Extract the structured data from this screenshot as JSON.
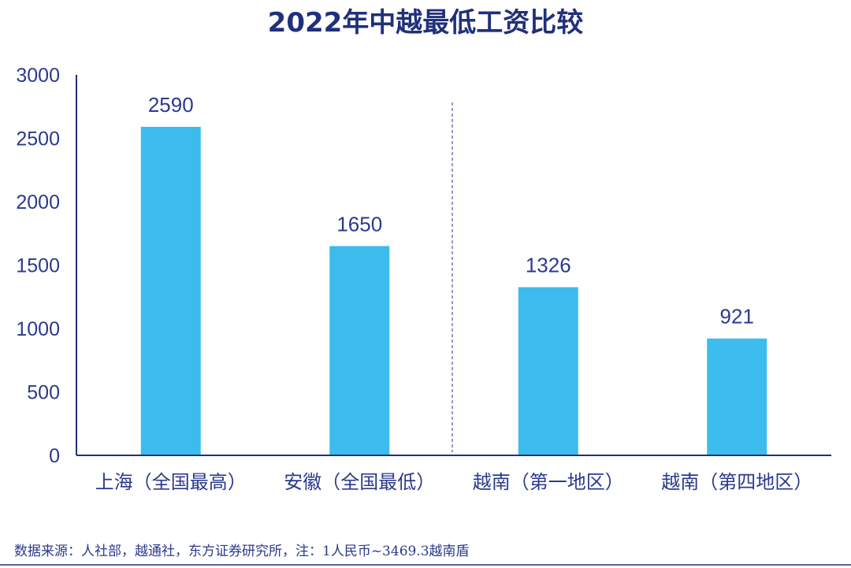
{
  "chart_data": {
    "type": "bar",
    "title": "2022年中越最低工资比较",
    "categories": [
      "上海（全国最高）",
      "安徽（全国最低）",
      "越南（第一地区）",
      "越南（第四地区）"
    ],
    "values": [
      2590,
      1650,
      1326,
      921
    ],
    "data_labels": [
      "2590",
      "1650",
      "1326",
      "921"
    ],
    "ylim": [
      0,
      3000
    ],
    "yticks": [
      "0",
      "500",
      "1000",
      "1500",
      "2000",
      "2500",
      "3000"
    ],
    "xlabel": "",
    "ylabel": "",
    "grid": false,
    "legend": "none",
    "divider_after_category": 2
  },
  "footer": {
    "source": "数据来源：人社部，越通社，东方证券研究所，注：1人民币~3469.3越南盾"
  },
  "colors": {
    "bar": "#3bbcec",
    "text": "#2b3a8c",
    "title": "#20307a",
    "axis": "#20307a",
    "divider": "#4a5a9a"
  }
}
